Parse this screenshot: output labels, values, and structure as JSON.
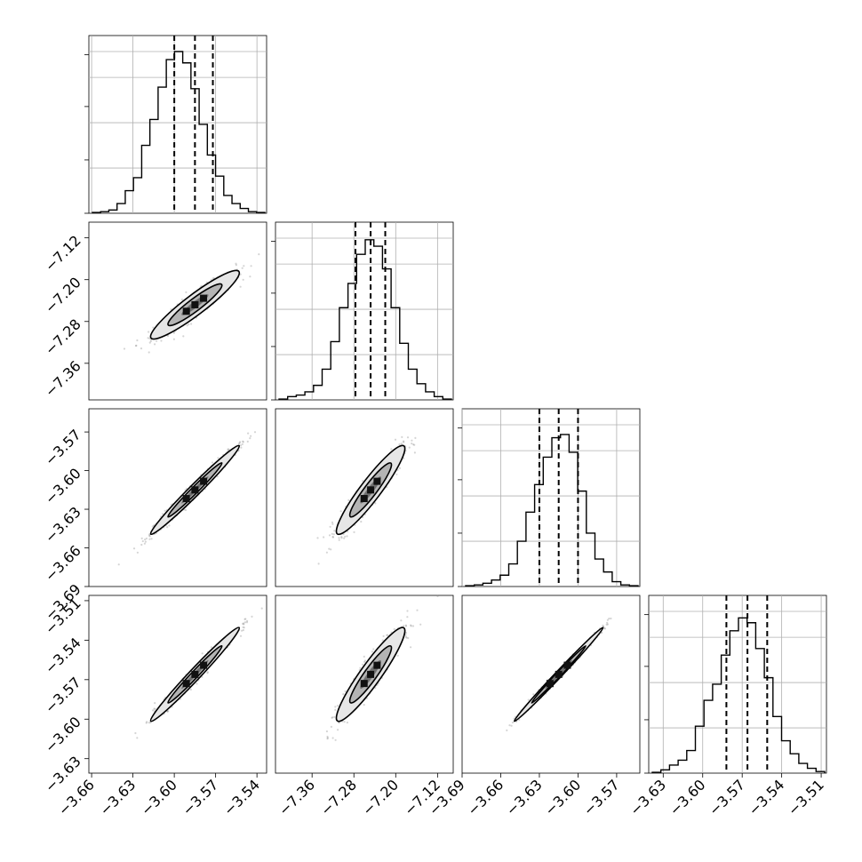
{
  "chart_data": {
    "type": "corner",
    "grid": true,
    "line_color": "#000000",
    "scatter_color": "#808080",
    "quantile_lines": "dashed",
    "variables": [
      {
        "index": 0,
        "quantiles": [
          -3.6,
          -3.585,
          -3.572
        ],
        "range": [
          -3.662,
          -3.533
        ],
        "ticks": [
          "−3.66",
          "−3.63",
          "−3.60",
          "−3.57",
          "−3.54"
        ],
        "tick_values": [
          -3.66,
          -3.63,
          -3.6,
          -3.57,
          -3.54
        ]
      },
      {
        "index": 1,
        "quantiles": [
          -7.277,
          -7.248,
          -7.22
        ],
        "range": [
          -7.43,
          -7.09
        ],
        "ticks": [
          "−7.36",
          "−7.28",
          "−7.20",
          "−7.12"
        ],
        "tick_values": [
          -7.36,
          -7.28,
          -7.2,
          -7.12
        ]
      },
      {
        "index": 2,
        "quantiles": [
          -3.63,
          -3.615,
          -3.6
        ],
        "range": [
          -3.69,
          -3.552
        ],
        "ticks": [
          "−3.69",
          "−3.66",
          "−3.63",
          "−3.60",
          "−3.57"
        ],
        "tick_values": [
          -3.69,
          -3.66,
          -3.63,
          -3.6,
          -3.57
        ]
      },
      {
        "index": 3,
        "quantiles": [
          -3.582,
          -3.566,
          -3.551
        ],
        "range": [
          -3.641,
          -3.506
        ],
        "ticks": [
          "−3.63",
          "−3.60",
          "−3.57",
          "−3.54",
          "−3.51"
        ],
        "tick_values": [
          -3.63,
          -3.6,
          -3.57,
          -3.54,
          -3.51
        ]
      }
    ],
    "histograms": [
      [
        0.005,
        0.01,
        0.02,
        0.06,
        0.14,
        0.22,
        0.42,
        0.58,
        0.78,
        0.95,
        1.0,
        0.93,
        0.77,
        0.55,
        0.36,
        0.23,
        0.11,
        0.06,
        0.03,
        0.01,
        0.005
      ],
      [
        0.005,
        0.02,
        0.03,
        0.05,
        0.09,
        0.19,
        0.36,
        0.57,
        0.72,
        0.9,
        0.99,
        0.95,
        0.81,
        0.57,
        0.35,
        0.19,
        0.1,
        0.05,
        0.02,
        0.005
      ],
      [
        0.005,
        0.01,
        0.02,
        0.04,
        0.07,
        0.14,
        0.28,
        0.46,
        0.63,
        0.8,
        0.92,
        0.94,
        0.83,
        0.59,
        0.33,
        0.17,
        0.09,
        0.03,
        0.01,
        0.005
      ],
      [
        0.005,
        0.02,
        0.05,
        0.08,
        0.14,
        0.29,
        0.45,
        0.55,
        0.73,
        0.88,
        0.96,
        0.93,
        0.77,
        0.59,
        0.35,
        0.2,
        0.12,
        0.06,
        0.03,
        0.01
      ]
    ],
    "pairs": [
      {
        "x": 0,
        "y": 1,
        "corr": 0.93
      },
      {
        "x": 0,
        "y": 2,
        "corr": 0.985
      },
      {
        "x": 1,
        "y": 2,
        "corr": 0.93
      },
      {
        "x": 0,
        "y": 3,
        "corr": 0.985
      },
      {
        "x": 1,
        "y": 3,
        "corr": 0.93
      },
      {
        "x": 2,
        "y": 3,
        "corr": 0.995
      }
    ]
  }
}
